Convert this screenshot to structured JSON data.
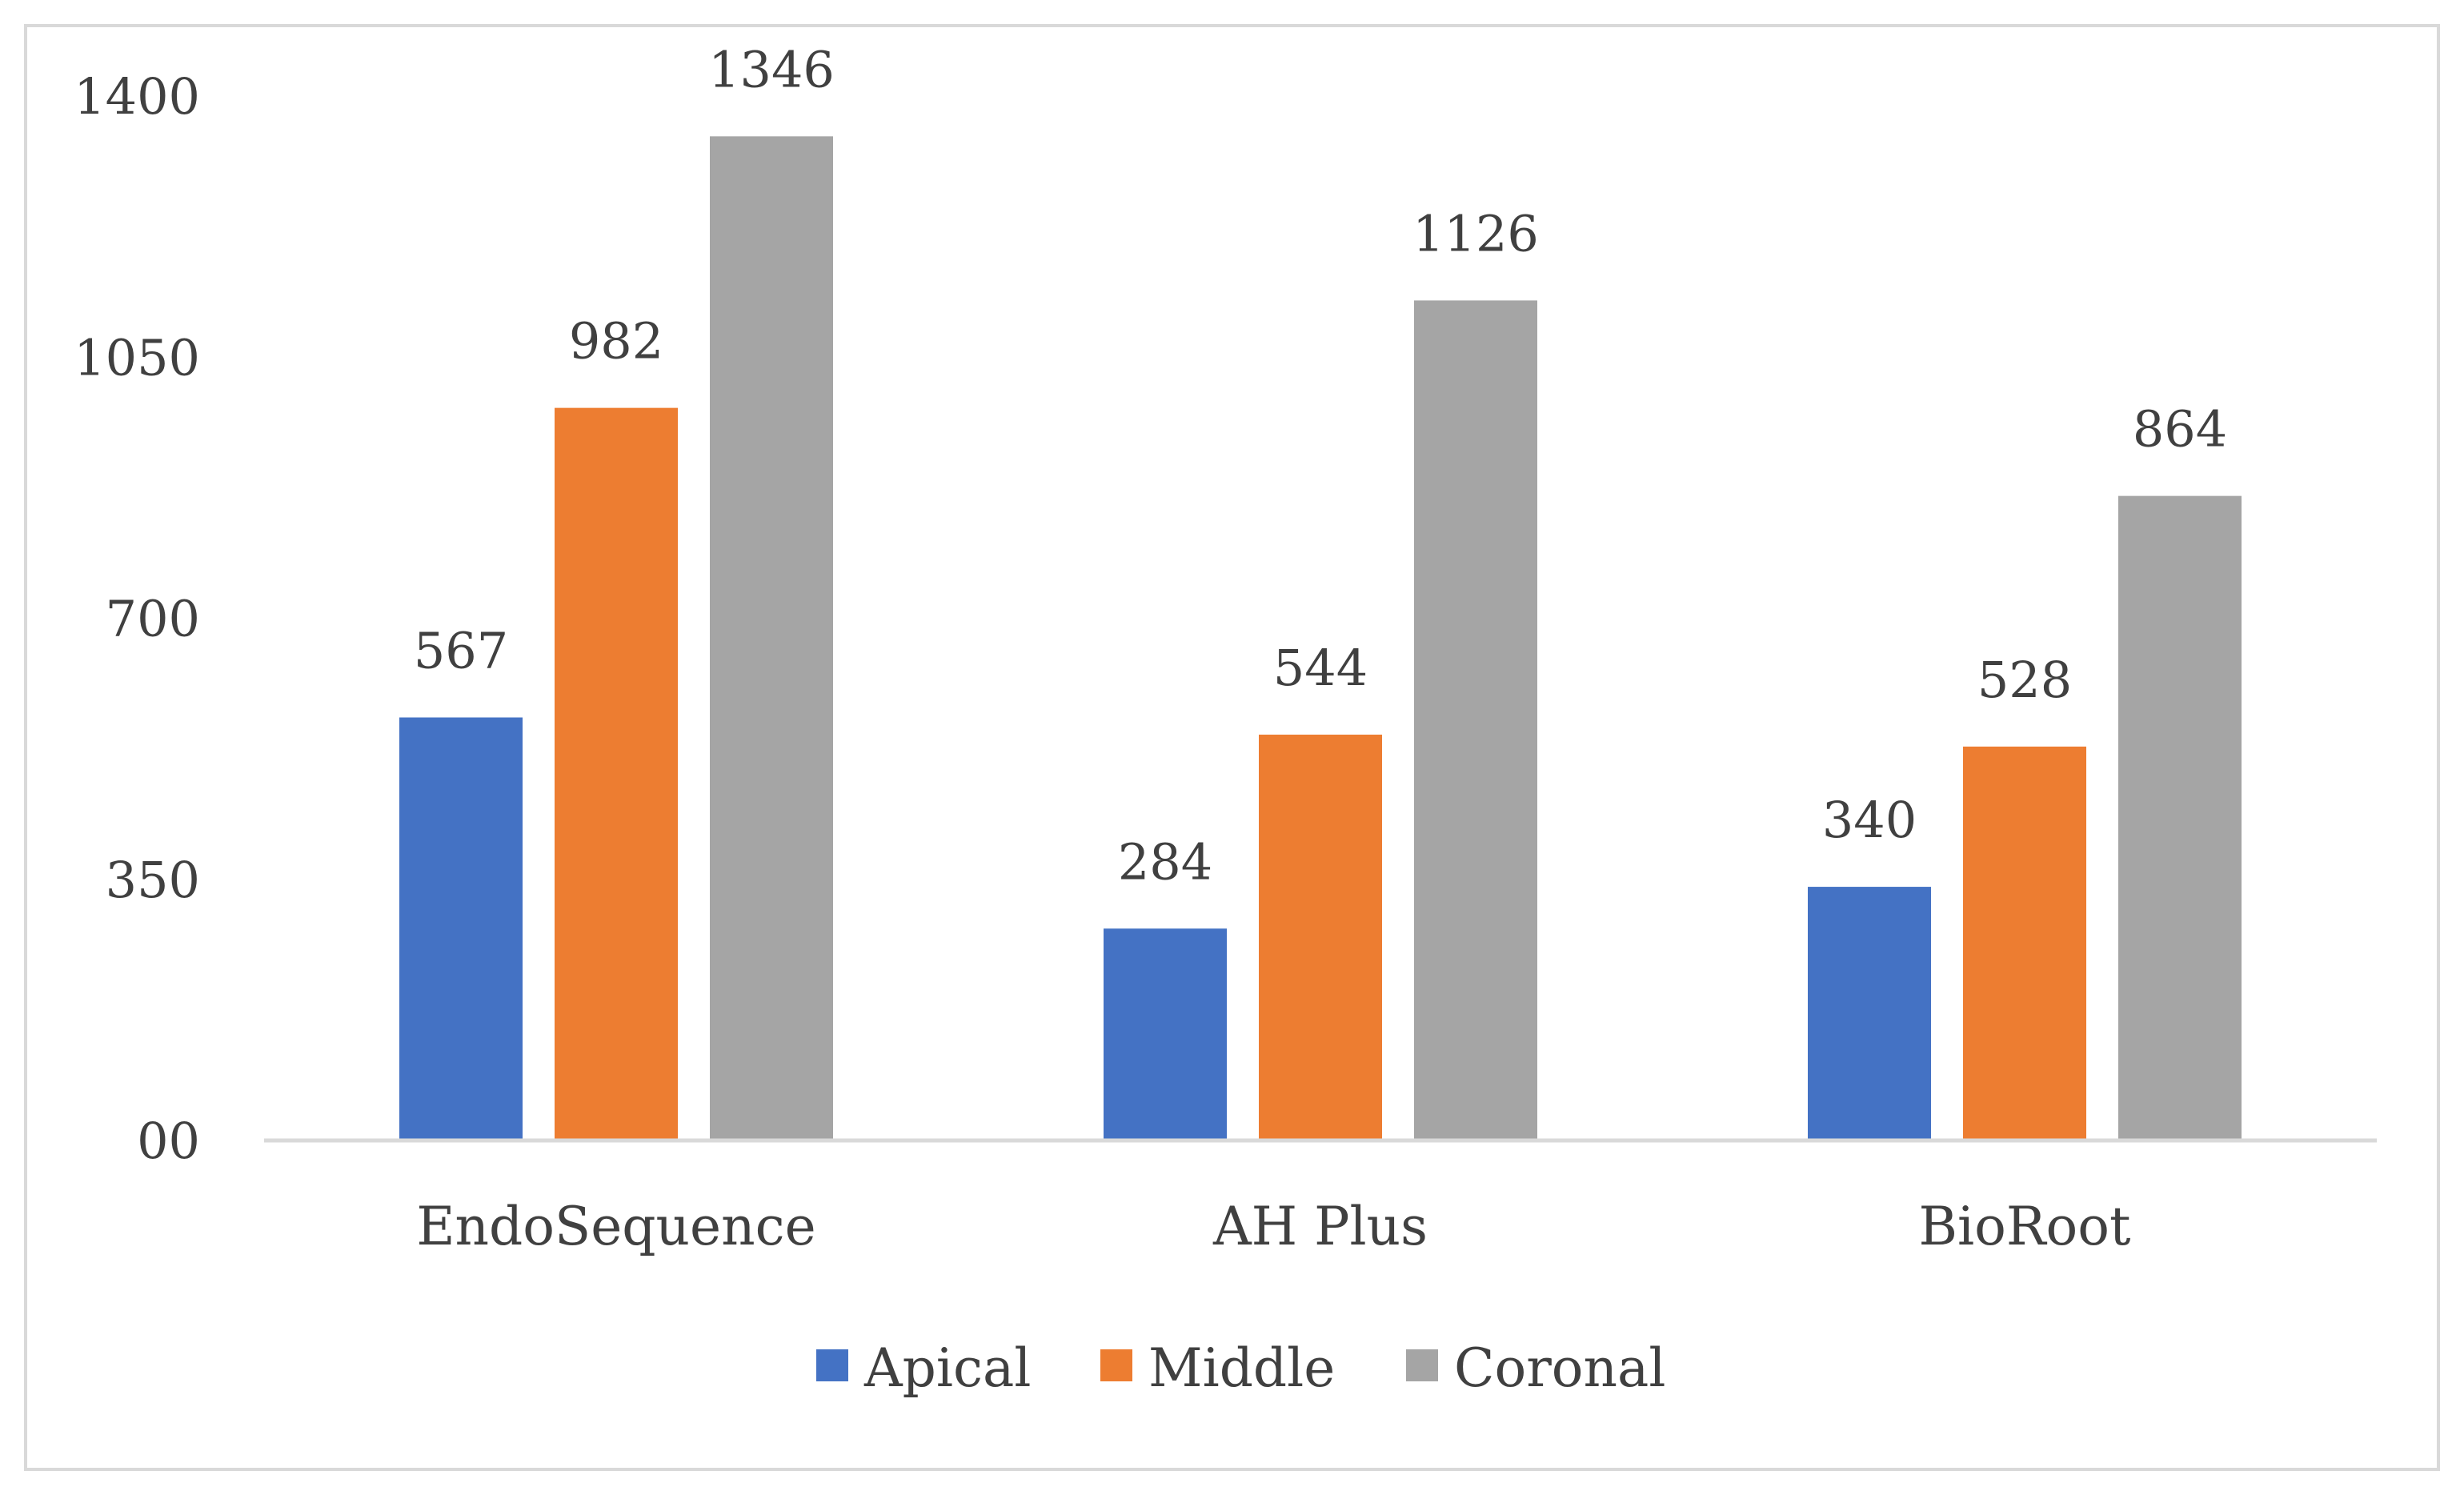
{
  "chart_data": {
    "type": "bar",
    "title": "",
    "xlabel": "",
    "ylabel": "",
    "categories": [
      "EndoSequence",
      "AH Plus",
      "BioRoot"
    ],
    "series": [
      {
        "name": "Apical",
        "color": "#4472C4",
        "values": [
          567,
          284,
          340
        ]
      },
      {
        "name": "Middle",
        "color": "#ED7D31",
        "values": [
          982,
          544,
          528
        ]
      },
      {
        "name": "Coronal",
        "color": "#A5A5A5",
        "values": [
          1346,
          1126,
          864
        ]
      }
    ],
    "ylim": [
      0,
      1400
    ],
    "yticks": [
      0,
      350,
      700,
      1050,
      1400
    ],
    "ytick_labels": [
      "00",
      "350",
      "700",
      "1050",
      "1400"
    ],
    "grid": false,
    "legend_position": "bottom"
  }
}
